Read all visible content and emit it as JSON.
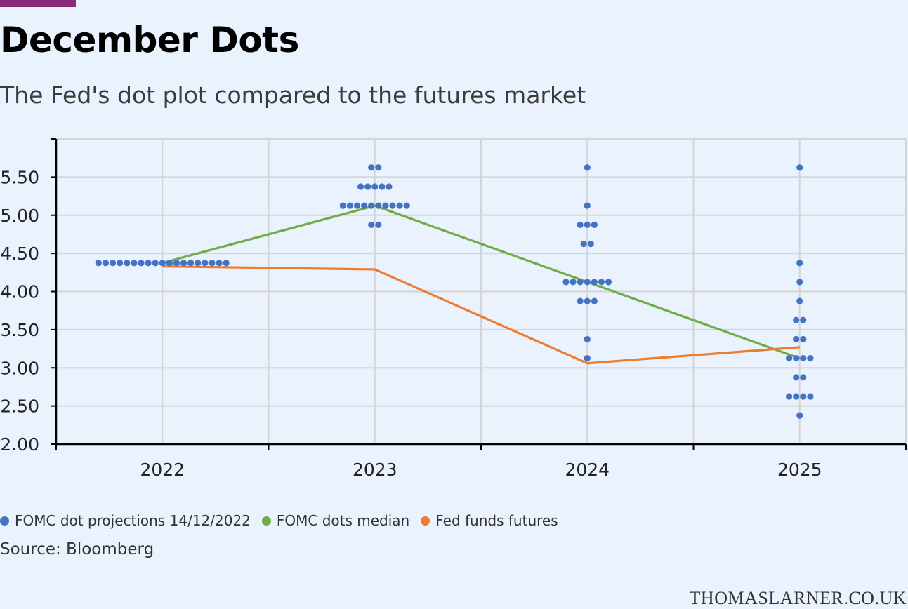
{
  "title": "December Dots",
  "subtitle": "The Fed's dot plot compared to the futures market",
  "source": "Source: Bloomberg",
  "brand": "THOMASLARNER.CO.UK",
  "colors": {
    "dots": "#4472c4",
    "median": "#70ad47",
    "futures": "#ed7d31",
    "accent": "#8b2a7a",
    "background": "#eaf2fd"
  },
  "chart_data": {
    "type": "scatter",
    "categories": [
      "2022",
      "2023",
      "2024",
      "2025"
    ],
    "ylim": [
      2.0,
      6.0
    ],
    "yticks": [
      "2.00",
      "2.50",
      "3.00",
      "3.50",
      "4.00",
      "4.50",
      "5.00",
      "5.50"
    ],
    "grid": true,
    "legend_position": "bottom-left",
    "legend": [
      {
        "label": "FOMC dot projections 14/12/2022",
        "color": "#4472c4"
      },
      {
        "label": "FOMC dots median",
        "color": "#70ad47"
      },
      {
        "label": "Fed funds futures",
        "color": "#ed7d31"
      }
    ],
    "dots": [
      {
        "year": "2022",
        "groups": [
          {
            "value": 4.375,
            "count": 19
          }
        ]
      },
      {
        "year": "2023",
        "groups": [
          {
            "value": 5.625,
            "count": 2
          },
          {
            "value": 5.375,
            "count": 5
          },
          {
            "value": 5.125,
            "count": 10
          },
          {
            "value": 4.875,
            "count": 2
          }
        ]
      },
      {
        "year": "2024",
        "groups": [
          {
            "value": 5.625,
            "count": 1
          },
          {
            "value": 5.125,
            "count": 1
          },
          {
            "value": 4.875,
            "count": 3
          },
          {
            "value": 4.625,
            "count": 2
          },
          {
            "value": 4.125,
            "count": 7
          },
          {
            "value": 3.875,
            "count": 3
          },
          {
            "value": 3.375,
            "count": 1
          },
          {
            "value": 3.125,
            "count": 1
          }
        ]
      },
      {
        "year": "2025",
        "groups": [
          {
            "value": 5.625,
            "count": 1
          },
          {
            "value": 4.375,
            "count": 1
          },
          {
            "value": 4.125,
            "count": 1
          },
          {
            "value": 3.875,
            "count": 1
          },
          {
            "value": 3.625,
            "count": 2
          },
          {
            "value": 3.375,
            "count": 2
          },
          {
            "value": 3.125,
            "count": 4
          },
          {
            "value": 2.875,
            "count": 2
          },
          {
            "value": 2.625,
            "count": 4
          },
          {
            "value": 2.375,
            "count": 1
          }
        ]
      }
    ],
    "series": [
      {
        "name": "FOMC dots median",
        "values": [
          4.375,
          5.125,
          4.125,
          3.125
        ]
      },
      {
        "name": "Fed funds futures",
        "values": [
          4.33,
          4.29,
          3.06,
          3.27
        ]
      }
    ]
  }
}
